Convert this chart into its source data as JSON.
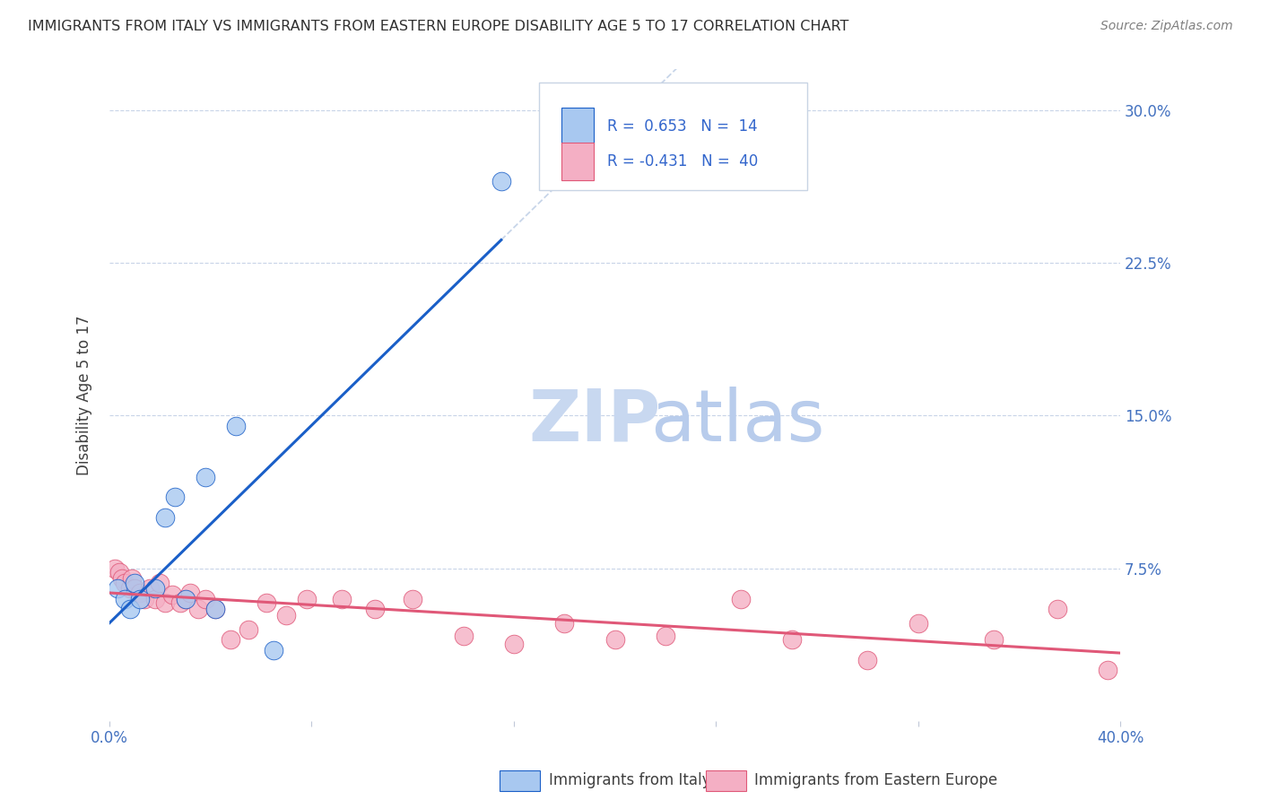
{
  "title": "IMMIGRANTS FROM ITALY VS IMMIGRANTS FROM EASTERN EUROPE DISABILITY AGE 5 TO 17 CORRELATION CHART",
  "source": "Source: ZipAtlas.com",
  "ylabel": "Disability Age 5 to 17",
  "xlim": [
    0.0,
    0.4
  ],
  "ylim": [
    0.0,
    0.32
  ],
  "xticks": [
    0.0,
    0.08,
    0.16,
    0.24,
    0.32,
    0.4
  ],
  "xticklabels": [
    "0.0%",
    "",
    "",
    "",
    "",
    "40.0%"
  ],
  "yticks": [
    0.0,
    0.075,
    0.15,
    0.225,
    0.3
  ],
  "yticklabels": [
    "",
    "7.5%",
    "15.0%",
    "22.5%",
    "30.0%"
  ],
  "italy_R": 0.653,
  "italy_N": 14,
  "eastern_R": -0.431,
  "eastern_N": 40,
  "italy_color": "#a8c8f0",
  "eastern_color": "#f4afc4",
  "italy_line_color": "#1a5fc8",
  "eastern_line_color": "#e05878",
  "grid_color": "#c8d4e8",
  "italy_x": [
    0.003,
    0.006,
    0.008,
    0.01,
    0.012,
    0.018,
    0.022,
    0.026,
    0.03,
    0.038,
    0.042,
    0.05,
    0.065,
    0.155
  ],
  "italy_y": [
    0.065,
    0.06,
    0.055,
    0.068,
    0.06,
    0.065,
    0.1,
    0.11,
    0.06,
    0.12,
    0.055,
    0.145,
    0.035,
    0.265
  ],
  "eastern_x": [
    0.002,
    0.004,
    0.005,
    0.006,
    0.008,
    0.009,
    0.01,
    0.012,
    0.014,
    0.016,
    0.018,
    0.02,
    0.022,
    0.025,
    0.028,
    0.03,
    0.032,
    0.035,
    0.038,
    0.042,
    0.048,
    0.055,
    0.062,
    0.07,
    0.078,
    0.092,
    0.105,
    0.12,
    0.14,
    0.16,
    0.18,
    0.2,
    0.22,
    0.25,
    0.27,
    0.3,
    0.32,
    0.35,
    0.375,
    0.395
  ],
  "eastern_y": [
    0.075,
    0.073,
    0.07,
    0.068,
    0.065,
    0.07,
    0.065,
    0.063,
    0.06,
    0.065,
    0.06,
    0.068,
    0.058,
    0.062,
    0.058,
    0.06,
    0.063,
    0.055,
    0.06,
    0.055,
    0.04,
    0.045,
    0.058,
    0.052,
    0.06,
    0.06,
    0.055,
    0.06,
    0.042,
    0.038,
    0.048,
    0.04,
    0.042,
    0.06,
    0.04,
    0.03,
    0.048,
    0.04,
    0.055,
    0.025
  ],
  "watermark_zip_color": "#c8d8f0",
  "watermark_atlas_color": "#b8ccec",
  "background_color": "#ffffff",
  "legend_box_color": "#e8eef8",
  "legend_text_color": "#3366cc"
}
